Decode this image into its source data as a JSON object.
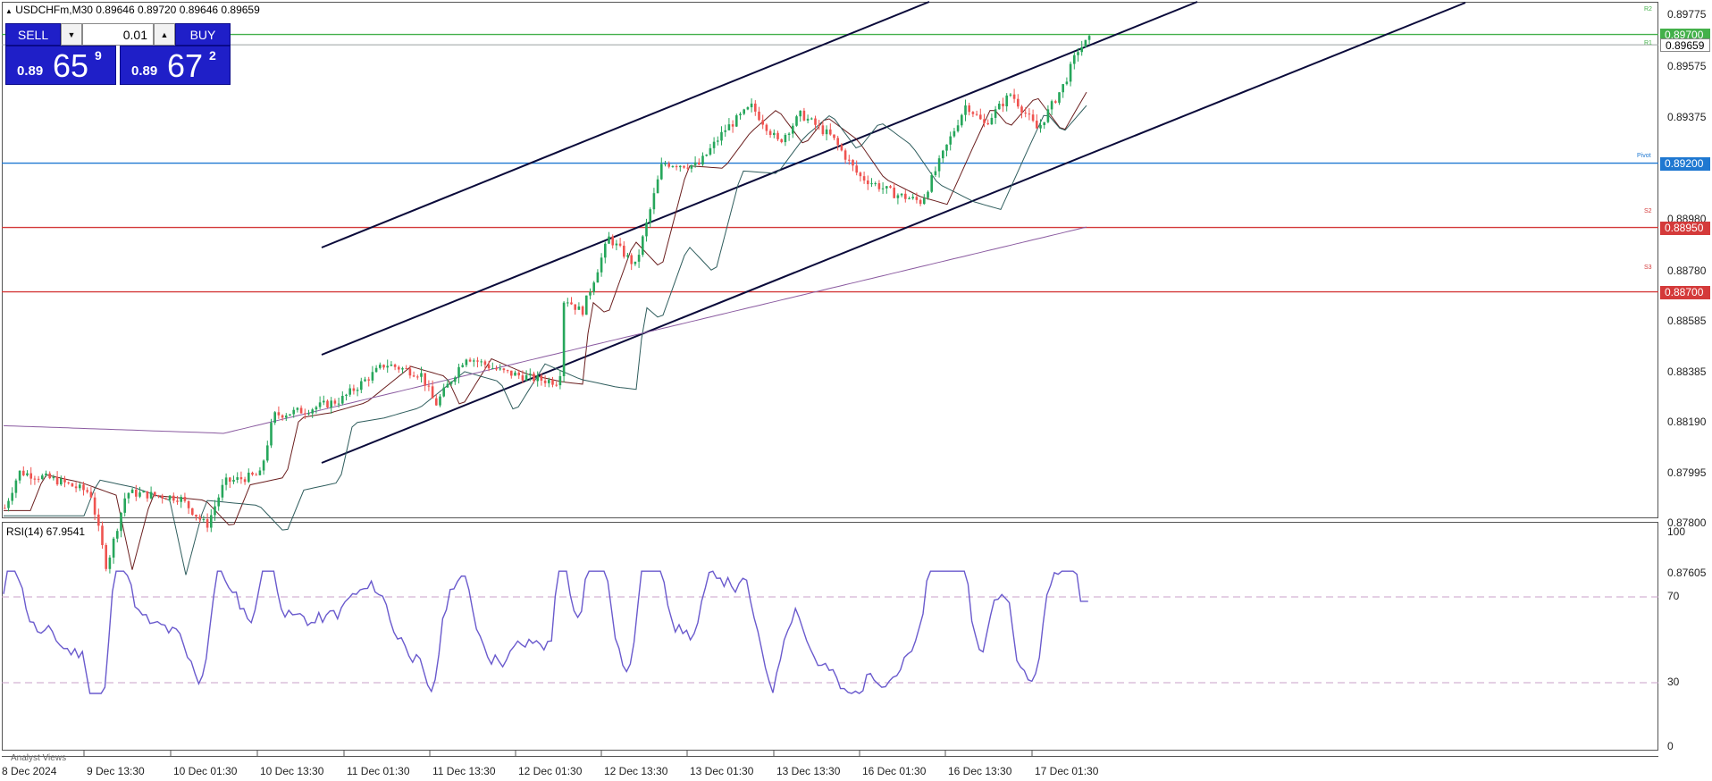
{
  "header": {
    "symbol_line": "USDCHFm,M30  0.89646 0.89720 0.89646 0.89659"
  },
  "trade_panel": {
    "sell_label": "SELL",
    "buy_label": "BUY",
    "lot_value": "0.01",
    "sell_price": {
      "prefix": "0.89",
      "big": "65",
      "sup": "9"
    },
    "buy_price": {
      "prefix": "0.89",
      "big": "67",
      "sup": "2"
    }
  },
  "colors": {
    "background": "#ffffff",
    "bull_candle": "#26a65b",
    "bear_candle": "#ef5350",
    "channel": "#0a0a3a",
    "pivot_line": "#1f78d1",
    "support_line": "#d43a3a",
    "resistance_line": "#43b04a",
    "ma_fast": "#6b1f1f",
    "ma_mid": "#2f5d5d",
    "ma_slow": "#8a5aa0",
    "rsi_line": "#6a5acd",
    "rsi_levels": "#c8a0c8"
  },
  "chart_data": [
    {
      "type": "candlestick",
      "title": "USDCHFm,M30",
      "ylim": [
        0.8752,
        0.8985
      ],
      "y_ticks": [
        "0.89775",
        "0.89575",
        "0.89375",
        "0.89200",
        "0.88980",
        "0.88780",
        "0.88585",
        "0.88385",
        "0.88190",
        "0.87995",
        "0.87800",
        "0.87605"
      ],
      "x_ticks": [
        "8 Dec 2024",
        "9 Dec 13:30",
        "10 Dec 01:30",
        "10 Dec 13:30",
        "11 Dec 01:30",
        "11 Dec 13:30",
        "12 Dec 01:30",
        "12 Dec 13:30",
        "13 Dec 01:30",
        "13 Dec 13:30",
        "16 Dec 01:30",
        "16 Dec 13:30",
        "17 Dec 01:30"
      ],
      "ohlc": {
        "open": 0.89646,
        "high": 0.8972,
        "low": 0.89646,
        "close": 0.89659
      },
      "current_price": "0.89659",
      "horizontal_levels": [
        {
          "name": "R2",
          "value": 0.897,
          "label": "0.89700"
        },
        {
          "name": "Pivot",
          "value": 0.892,
          "label": "0.89200"
        },
        {
          "name": "S2",
          "value": 0.8895,
          "label": "0.88950"
        },
        {
          "name": "S3",
          "value": 0.887,
          "label": "0.88700"
        }
      ],
      "level_captions": [
        "R2",
        "R1",
        "Pivot",
        "S2",
        "S3"
      ],
      "trend_channel": "ascending"
    },
    {
      "type": "line",
      "title": "RSI(14) 67.9541",
      "ylim": [
        0,
        100
      ],
      "y_ticks": [
        "100",
        "70",
        "30",
        "0"
      ],
      "levels": [
        70,
        30
      ],
      "last_value": 67.9541
    }
  ],
  "footer": {
    "analyst_label": "Analyst Views"
  }
}
